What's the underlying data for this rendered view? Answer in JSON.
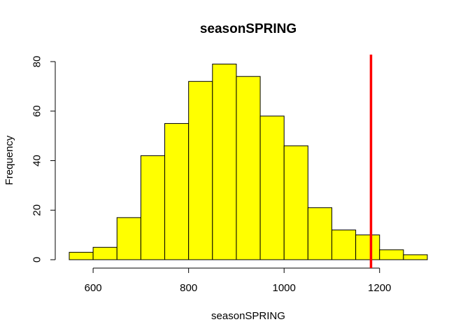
{
  "chart_data": {
    "type": "histogram",
    "title": "seasonSPRING",
    "xlabel": "seasonSPRING",
    "ylabel": "Frequency",
    "bin_edges": [
      550,
      600,
      650,
      700,
      750,
      800,
      850,
      900,
      950,
      1000,
      1050,
      1100,
      1150,
      1200,
      1250,
      1300
    ],
    "counts": [
      3,
      5,
      17,
      42,
      55,
      72,
      79,
      74,
      58,
      46,
      21,
      12,
      10,
      4,
      2
    ],
    "x_ticks": [
      600,
      800,
      1000,
      1200
    ],
    "y_ticks": [
      0,
      20,
      40,
      60,
      80
    ],
    "xlim": [
      550,
      1300
    ],
    "ylim": [
      0,
      80
    ],
    "bar_fill": "#ffff00",
    "bar_stroke": "#000000",
    "reference_line": {
      "x": 1182,
      "color": "#ff0000"
    },
    "grid": false,
    "legend": "none"
  }
}
